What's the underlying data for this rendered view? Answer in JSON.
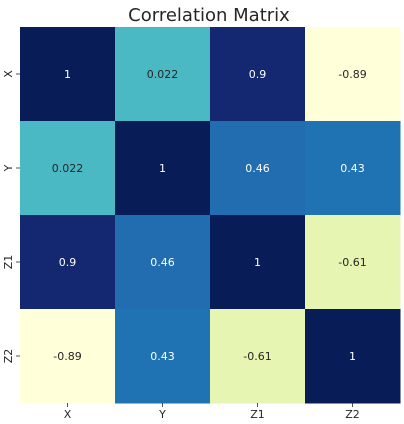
{
  "chart_data": {
    "type": "heatmap",
    "title": "Correlation Matrix",
    "x_categories": [
      "X",
      "Y",
      "Z1",
      "Z2"
    ],
    "y_categories": [
      "X",
      "Y",
      "Z1",
      "Z2"
    ],
    "values": [
      [
        1,
        0.022,
        0.9,
        -0.89
      ],
      [
        0.022,
        1,
        0.46,
        0.43
      ],
      [
        0.9,
        0.46,
        1,
        -0.61
      ],
      [
        -0.89,
        0.43,
        -0.61,
        1
      ]
    ],
    "labels": [
      [
        "1",
        "0.022",
        "0.9",
        "-0.89"
      ],
      [
        "0.022",
        "1",
        "0.46",
        "0.43"
      ],
      [
        "0.9",
        "0.46",
        "1",
        "-0.61"
      ],
      [
        "-0.89",
        "0.43",
        "-0.61",
        "1"
      ]
    ],
    "colormap": "YlGnBu",
    "vmin": -0.89,
    "vmax": 1,
    "colorbar": false,
    "grid": false
  }
}
